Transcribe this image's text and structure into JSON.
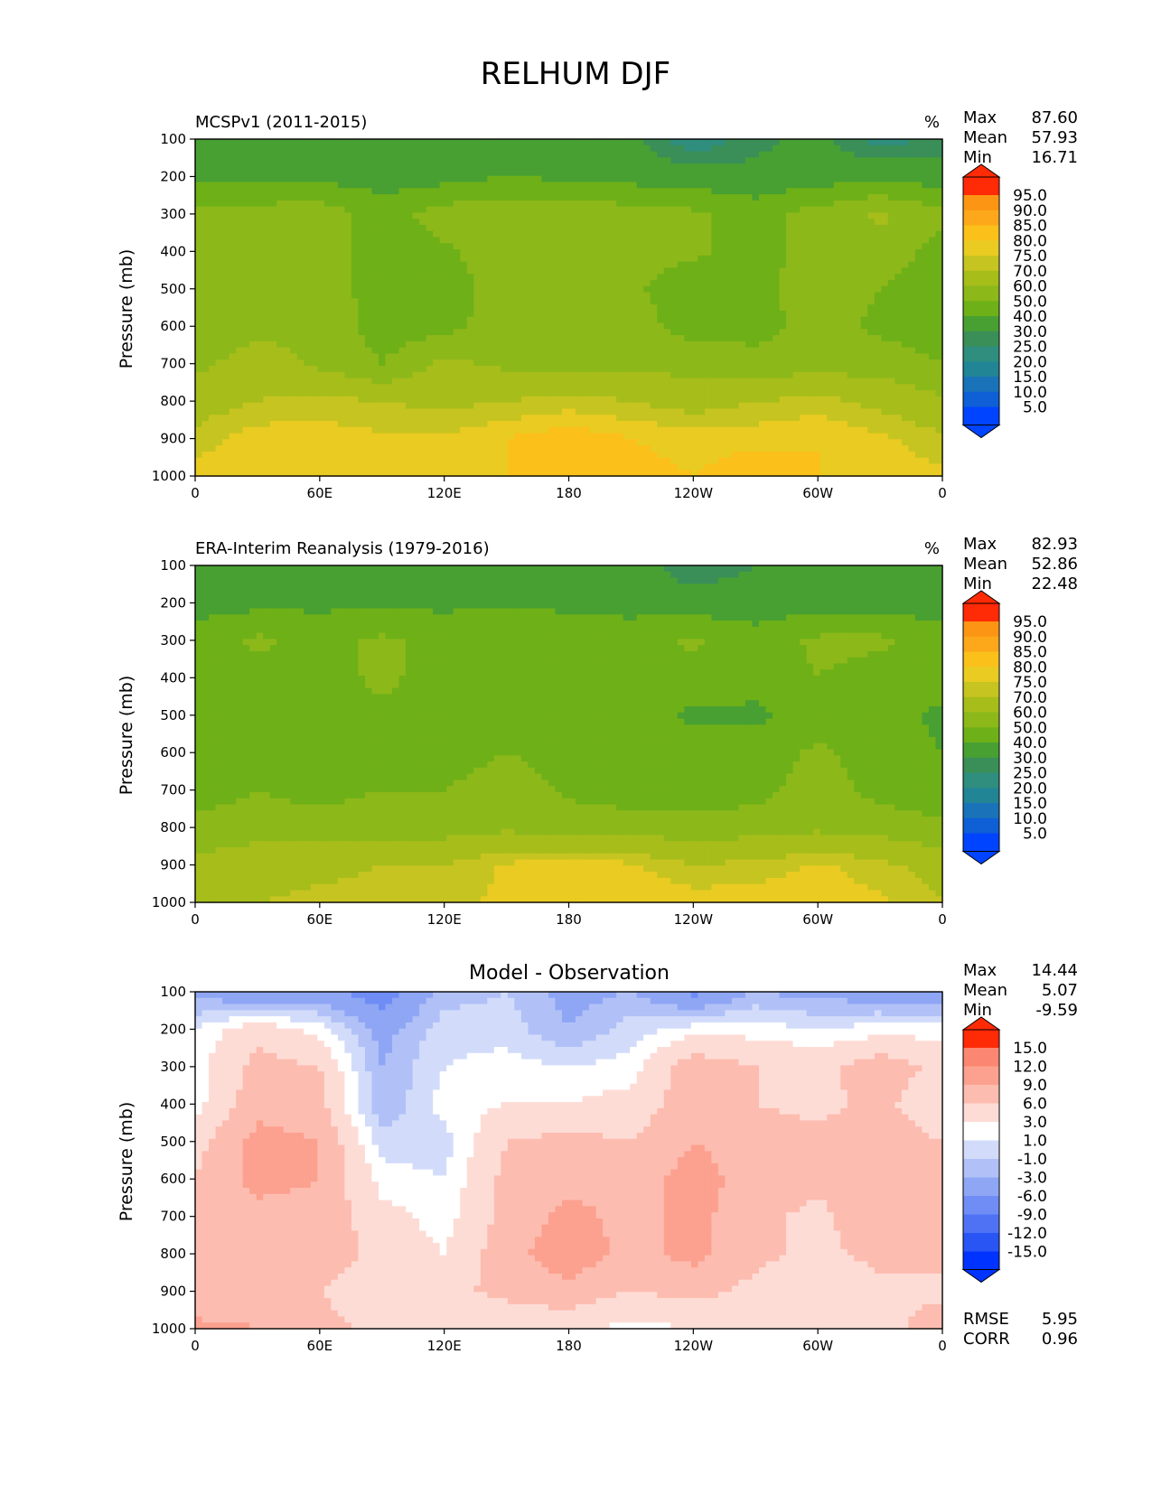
{
  "figure": {
    "title": "RELHUM DJF"
  },
  "axes": {
    "ylabel": "Pressure (mb)",
    "yticks": [
      "100",
      "200",
      "300",
      "400",
      "500",
      "600",
      "700",
      "800",
      "900",
      "1000"
    ],
    "xticks": [
      "0",
      "60E",
      "120E",
      "180",
      "120W",
      "60W",
      "0"
    ]
  },
  "colors": {
    "relhum_scale": [
      "#0044ff",
      "#0f5fd6",
      "#1a73b8",
      "#218596",
      "#2f8e7e",
      "#3a8f58",
      "#48a032",
      "#6eb017",
      "#8cb81a",
      "#a6bd1a",
      "#c6c420",
      "#e9cb22",
      "#fbc01a",
      "#fca81a",
      "#fd9514",
      "#fd7e0f",
      "#fd6a0c",
      "#fe4a0c",
      "#ff2a06"
    ],
    "diff_scale": [
      "#0033ff",
      "#2a55f5",
      "#4f72f5",
      "#6f8df5",
      "#8fa6f5",
      "#b1c1f7",
      "#d2dcfa",
      "#ffffff",
      "#fedcd6",
      "#fdbcb0",
      "#fca18f",
      "#fb8671",
      "#f86a55",
      "#f24d38",
      "#ff2a06"
    ]
  },
  "chart_data": [
    {
      "type": "heatmap",
      "left_title": "MCSPv1 (2011-2015)",
      "units": "%",
      "stats": {
        "Max": "87.60",
        "Mean": "57.93",
        "Min": "16.71"
      },
      "colorbar_levels": [
        "5.0",
        "10.0",
        "15.0",
        "20.0",
        "25.0",
        "30.0",
        "40.0",
        "50.0",
        "60.0",
        "70.0",
        "75.0",
        "80.0",
        "85.0",
        "90.0",
        "95.0"
      ],
      "x": [
        0,
        30,
        60,
        90,
        120,
        150,
        180,
        210,
        240,
        270,
        300,
        330,
        360
      ],
      "y": [
        100,
        200,
        300,
        400,
        500,
        600,
        700,
        800,
        900,
        1000
      ],
      "values": [
        [
          32,
          30,
          35,
          30,
          36,
          38,
          36,
          32,
          20,
          28,
          32,
          22,
          26
        ],
        [
          38,
          36,
          37,
          35,
          36,
          40,
          38,
          36,
          34,
          32,
          35,
          37,
          35
        ],
        [
          52,
          55,
          56,
          45,
          55,
          56,
          56,
          55,
          52,
          46,
          54,
          62,
          52
        ],
        [
          50,
          55,
          56,
          45,
          48,
          56,
          55,
          54,
          52,
          46,
          54,
          56,
          46
        ],
        [
          52,
          55,
          56,
          45,
          46,
          54,
          56,
          52,
          44,
          48,
          54,
          50,
          44
        ],
        [
          50,
          56,
          58,
          45,
          46,
          56,
          57,
          54,
          46,
          46,
          54,
          48,
          44
        ],
        [
          57,
          66,
          58,
          50,
          62,
          58,
          58,
          58,
          56,
          54,
          56,
          55,
          50
        ],
        [
          66,
          70,
          72,
          70,
          68,
          70,
          72,
          70,
          66,
          70,
          72,
          68,
          62
        ],
        [
          72,
          78,
          78,
          76,
          76,
          80,
          84,
          80,
          78,
          78,
          80,
          76,
          72
        ],
        [
          78,
          80,
          80,
          80,
          78,
          80,
          82,
          82,
          80,
          84,
          80,
          78,
          76
        ]
      ]
    },
    {
      "type": "heatmap",
      "left_title": "ERA-Interim Reanalysis (1979-2016)",
      "units": "%",
      "stats": {
        "Max": "82.93",
        "Mean": "52.86",
        "Min": "22.48"
      },
      "colorbar_levels": [
        "5.0",
        "10.0",
        "15.0",
        "20.0",
        "25.0",
        "30.0",
        "40.0",
        "50.0",
        "60.0",
        "70.0",
        "75.0",
        "80.0",
        "85.0",
        "90.0",
        "95.0"
      ],
      "x": [
        0,
        30,
        60,
        90,
        120,
        150,
        180,
        210,
        240,
        270,
        300,
        330,
        360
      ],
      "y": [
        100,
        200,
        300,
        400,
        500,
        600,
        700,
        800,
        900,
        1000
      ],
      "values": [
        [
          32,
          34,
          36,
          36,
          38,
          38,
          38,
          34,
          25,
          30,
          34,
          30,
          32
        ],
        [
          36,
          37,
          38,
          38,
          38,
          38,
          38,
          36,
          34,
          34,
          36,
          36,
          35
        ],
        [
          44,
          52,
          46,
          52,
          46,
          50,
          46,
          46,
          52,
          44,
          52,
          52,
          44
        ],
        [
          44,
          46,
          46,
          52,
          46,
          50,
          46,
          46,
          46,
          44,
          50,
          46,
          44
        ],
        [
          44,
          46,
          46,
          48,
          46,
          50,
          46,
          46,
          38,
          38,
          46,
          44,
          38
        ],
        [
          44,
          46,
          46,
          46,
          44,
          50,
          46,
          44,
          44,
          44,
          52,
          44,
          40
        ],
        [
          44,
          50,
          46,
          50,
          50,
          56,
          48,
          44,
          44,
          46,
          56,
          46,
          44
        ],
        [
          54,
          56,
          55,
          56,
          56,
          58,
          56,
          56,
          54,
          56,
          58,
          56,
          52
        ],
        [
          62,
          66,
          68,
          70,
          70,
          76,
          78,
          76,
          70,
          72,
          76,
          72,
          66
        ],
        [
          68,
          70,
          72,
          72,
          74,
          76,
          78,
          80,
          78,
          78,
          78,
          76,
          70
        ]
      ]
    },
    {
      "type": "heatmap",
      "title": "Model - Observation",
      "stats": {
        "Max": "14.44",
        "Mean": "5.07",
        "Min": "-9.59"
      },
      "metrics": {
        "RMSE": "5.95",
        "CORR": "0.96"
      },
      "colorbar_levels": [
        "-15.0",
        "-12.0",
        "-9.0",
        "-6.0",
        "-3.0",
        "-1.0",
        "1.0",
        "3.0",
        "6.0",
        "9.0",
        "12.0",
        "15.0"
      ],
      "x": [
        0,
        30,
        60,
        90,
        120,
        150,
        180,
        210,
        240,
        270,
        300,
        330,
        360
      ],
      "y": [
        100,
        200,
        300,
        400,
        500,
        600,
        700,
        800,
        900,
        1000
      ],
      "values": [
        [
          -4,
          -6,
          -5,
          -8,
          -2,
          -1,
          -4,
          -3,
          -7,
          -3,
          -4,
          -5,
          -6
        ],
        [
          1,
          5,
          2,
          -4,
          0,
          0,
          -3,
          0,
          2,
          2,
          1,
          2,
          2
        ],
        [
          2,
          7,
          6,
          -3,
          1,
          2,
          1,
          2,
          8,
          6,
          5,
          8,
          5
        ],
        [
          2,
          8,
          7,
          -3,
          2,
          3,
          3,
          4,
          8,
          6,
          5,
          7,
          3
        ],
        [
          5,
          10,
          9,
          0,
          0,
          6,
          7,
          6,
          9,
          8,
          7,
          8,
          6
        ],
        [
          6,
          10,
          9,
          2,
          1,
          7,
          8,
          8,
          10,
          8,
          7,
          8,
          7
        ],
        [
          7,
          8,
          8,
          4,
          2,
          7,
          10,
          8,
          10,
          7,
          5,
          9,
          7
        ],
        [
          7,
          8,
          8,
          5,
          3,
          8,
          11,
          8,
          10,
          7,
          5,
          7,
          7
        ],
        [
          6,
          8,
          6,
          4,
          5,
          7,
          8,
          6,
          7,
          5,
          3,
          5,
          5
        ],
        [
          10,
          9,
          7,
          5,
          4,
          3,
          4,
          2,
          3,
          4,
          3,
          4,
          9
        ]
      ]
    }
  ]
}
